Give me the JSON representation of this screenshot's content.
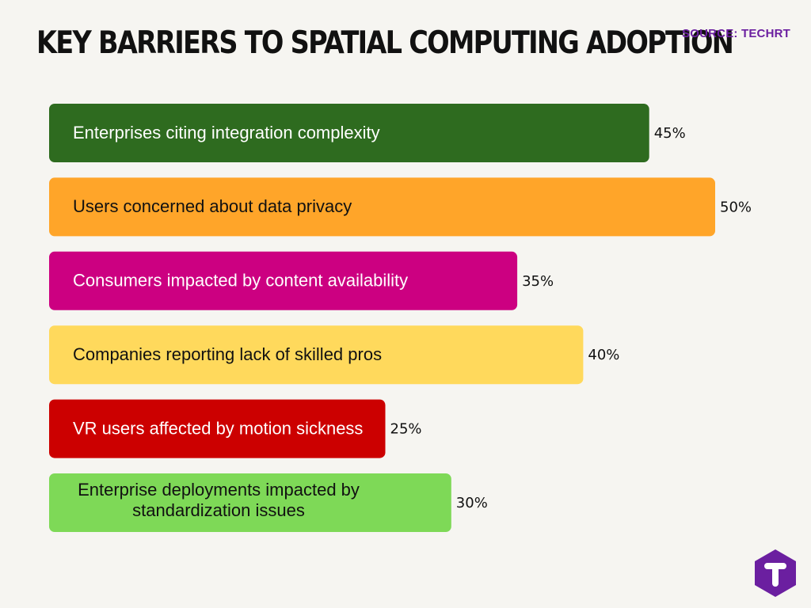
{
  "header": {
    "title": "KEY BARRIERS TO SPATIAL COMPUTING ADOPTION",
    "source": "SOURCE: TECHRT"
  },
  "chart_data": {
    "type": "bar",
    "orientation": "horizontal",
    "categories": [
      "Enterprises citing integration complexity",
      "Users concerned about data privacy",
      "Consumers impacted by content availability",
      "Companies reporting lack of skilled pros",
      "VR users affected by motion sickness",
      "Enterprise deployments impacted by standardization issues"
    ],
    "label_lines": [
      [
        "Enterprises citing integration complexity"
      ],
      [
        "Users concerned about data privacy"
      ],
      [
        "Consumers impacted by content availability"
      ],
      [
        "Companies reporting lack of skilled pros"
      ],
      [
        "VR users affected by motion sickness"
      ],
      [
        "Enterprise deployments impacted by",
        "standardization issues"
      ]
    ],
    "values": [
      45,
      50,
      35,
      40,
      25,
      30
    ],
    "value_labels": [
      "45%",
      "50%",
      "35%",
      "40%",
      "25%",
      "30%"
    ],
    "unit": "%",
    "colors": [
      "#2e6b1f",
      "#ffa529",
      "#cc0081",
      "#ffd95c",
      "#cc0000",
      "#7ed957"
    ],
    "label_colors": [
      "#ffffff",
      "#111111",
      "#ffffff",
      "#111111",
      "#ffffff",
      "#111111"
    ],
    "xlim": [
      0,
      50
    ],
    "grid": false,
    "legend": "none"
  },
  "logo": {
    "name": "techrt-logo-icon",
    "color": "#6b1fa0"
  }
}
